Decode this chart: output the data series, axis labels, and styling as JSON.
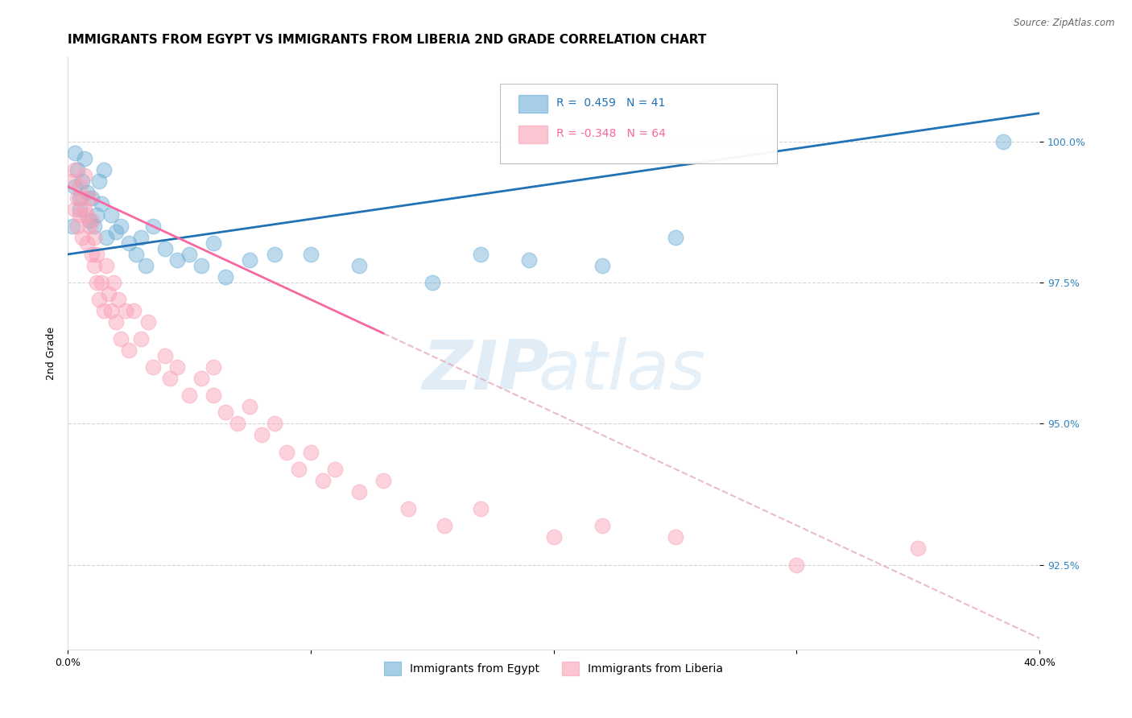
{
  "title": "IMMIGRANTS FROM EGYPT VS IMMIGRANTS FROM LIBERIA 2ND GRADE CORRELATION CHART",
  "source": "Source: ZipAtlas.com",
  "ylabel": "2nd Grade",
  "legend_labels": [
    "Immigrants from Egypt",
    "Immigrants from Liberia"
  ],
  "egypt_color": "#6baed6",
  "liberia_color": "#fa9fb5",
  "egypt_trend_color": "#2171b5",
  "liberia_trend_color": "#f768a1",
  "egypt_R": 0.459,
  "egypt_N": 41,
  "liberia_R": -0.348,
  "liberia_N": 64,
  "xlim": [
    0.0,
    40.0
  ],
  "ylim": [
    91.0,
    101.5
  ],
  "yticks": [
    92.5,
    95.0,
    97.5,
    100.0
  ],
  "ytick_labels": [
    "92.5%",
    "95.0%",
    "97.5%",
    "100.0%"
  ],
  "egypt_line_x0": 0.0,
  "egypt_line_y0": 98.0,
  "egypt_line_x1": 40.0,
  "egypt_line_y1": 100.5,
  "liberia_line_x0": 0.0,
  "liberia_line_y0": 99.2,
  "liberia_line_x1": 40.0,
  "liberia_line_y1": 91.2,
  "liberia_solid_end_x": 13.0,
  "egypt_x": [
    0.2,
    0.3,
    0.3,
    0.4,
    0.5,
    0.5,
    0.6,
    0.7,
    0.8,
    0.9,
    1.0,
    1.1,
    1.2,
    1.3,
    1.4,
    1.5,
    1.6,
    1.8,
    2.0,
    2.2,
    2.5,
    2.8,
    3.0,
    3.2,
    3.5,
    4.0,
    4.5,
    5.0,
    5.5,
    6.0,
    6.5,
    7.5,
    8.5,
    10.0,
    12.0,
    15.0,
    17.0,
    19.0,
    22.0,
    25.0,
    38.5
  ],
  "egypt_y": [
    98.5,
    99.8,
    99.2,
    99.5,
    98.8,
    99.0,
    99.3,
    99.7,
    99.1,
    98.6,
    99.0,
    98.5,
    98.7,
    99.3,
    98.9,
    99.5,
    98.3,
    98.7,
    98.4,
    98.5,
    98.2,
    98.0,
    98.3,
    97.8,
    98.5,
    98.1,
    97.9,
    98.0,
    97.8,
    98.2,
    97.6,
    97.9,
    98.0,
    98.0,
    97.8,
    97.5,
    98.0,
    97.9,
    97.8,
    98.3,
    100.0
  ],
  "liberia_x": [
    0.2,
    0.3,
    0.3,
    0.4,
    0.4,
    0.5,
    0.5,
    0.6,
    0.6,
    0.7,
    0.7,
    0.8,
    0.8,
    0.9,
    0.9,
    1.0,
    1.0,
    1.1,
    1.1,
    1.2,
    1.2,
    1.3,
    1.4,
    1.5,
    1.6,
    1.7,
    1.8,
    1.9,
    2.0,
    2.1,
    2.2,
    2.4,
    2.5,
    2.7,
    3.0,
    3.3,
    3.5,
    4.0,
    4.2,
    4.5,
    5.0,
    5.5,
    6.0,
    6.0,
    6.5,
    7.0,
    7.5,
    8.0,
    8.5,
    9.0,
    9.5,
    10.0,
    10.5,
    11.0,
    12.0,
    13.0,
    14.0,
    15.5,
    17.0,
    20.0,
    22.0,
    25.0,
    30.0,
    35.0
  ],
  "liberia_y": [
    99.3,
    99.5,
    98.8,
    99.0,
    98.5,
    98.7,
    99.2,
    98.3,
    99.0,
    98.8,
    99.4,
    98.2,
    98.7,
    98.5,
    99.0,
    98.0,
    98.6,
    97.8,
    98.3,
    97.5,
    98.0,
    97.2,
    97.5,
    97.0,
    97.8,
    97.3,
    97.0,
    97.5,
    96.8,
    97.2,
    96.5,
    97.0,
    96.3,
    97.0,
    96.5,
    96.8,
    96.0,
    96.2,
    95.8,
    96.0,
    95.5,
    95.8,
    96.0,
    95.5,
    95.2,
    95.0,
    95.3,
    94.8,
    95.0,
    94.5,
    94.2,
    94.5,
    94.0,
    94.2,
    93.8,
    94.0,
    93.5,
    93.2,
    93.5,
    93.0,
    93.2,
    93.0,
    92.5,
    92.8
  ],
  "background_color": "#ffffff",
  "grid_color": "#cccccc",
  "watermark_zip": "ZIP",
  "watermark_atlas": "atlas",
  "title_fontsize": 11,
  "axis_label_fontsize": 9,
  "tick_fontsize": 9,
  "legend_fontsize": 10
}
